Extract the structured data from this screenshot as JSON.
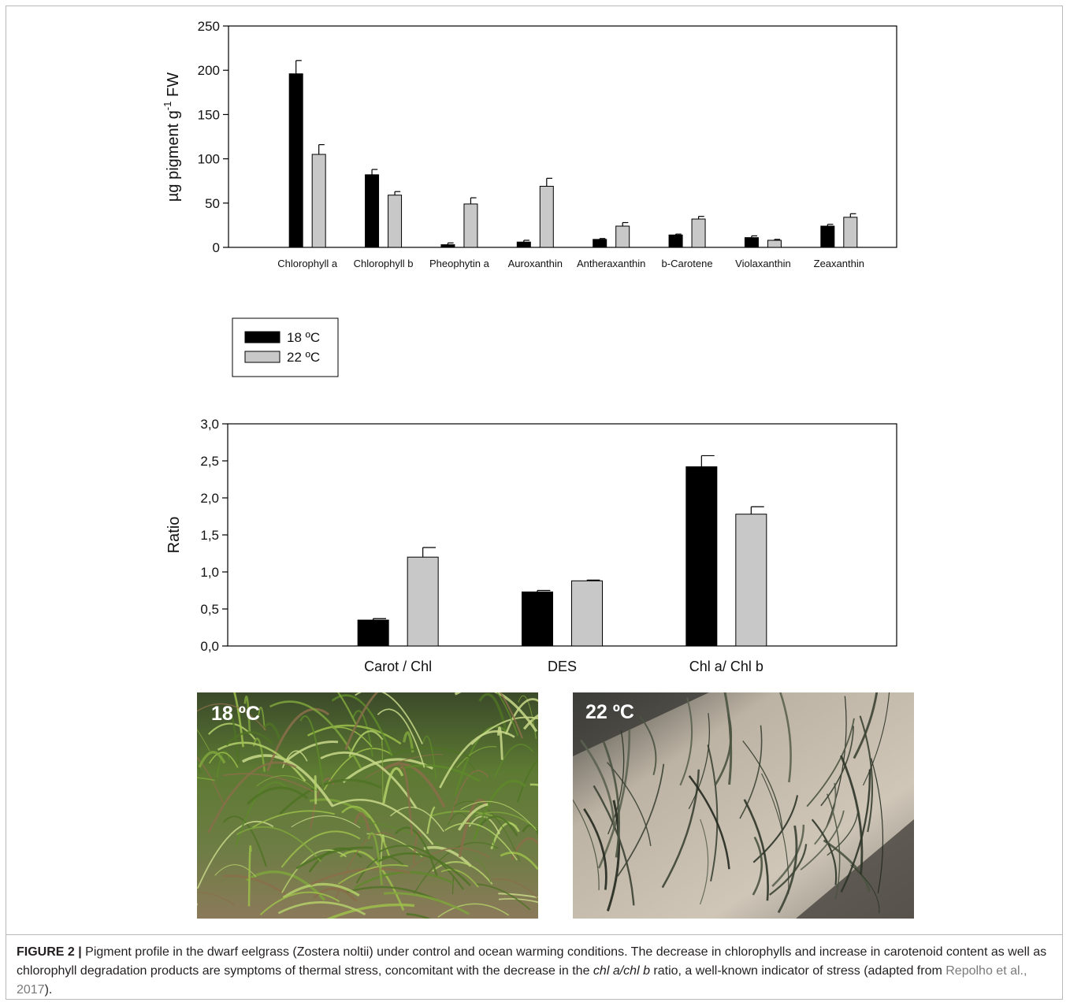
{
  "chart_data": [
    {
      "type": "bar",
      "title": "",
      "xlabel": "",
      "ylabel": "µg pigment g",
      "ylabel_sup": "-1",
      "ylabel_suffix": " FW",
      "ylim": [
        0,
        250
      ],
      "yticks": [
        "0",
        "50",
        "100",
        "150",
        "200",
        "250"
      ],
      "categories": [
        "Chlorophyll a",
        "Chlorophyll b",
        "Pheophytin a",
        "Auroxanthin",
        "Antheraxanthin",
        "b-Carotene",
        "Violaxanthin",
        "Zeaxanthin"
      ],
      "series": [
        {
          "name": "18 ºC",
          "color": "#000000",
          "values": [
            196,
            82,
            3,
            6,
            9,
            14,
            11,
            24
          ],
          "errors": [
            15,
            6,
            2,
            2,
            1,
            1,
            2,
            2
          ]
        },
        {
          "name": "22 ºC",
          "color": "#c8c8c8",
          "values": [
            105,
            59,
            49,
            69,
            24,
            32,
            8,
            34
          ],
          "errors": [
            11,
            4,
            7,
            9,
            4,
            3,
            1,
            4
          ]
        }
      ],
      "grid": false,
      "legend": "below chart, left"
    },
    {
      "type": "bar",
      "title": "",
      "xlabel": "",
      "ylabel": "Ratio",
      "ylim": [
        0,
        3
      ],
      "yticks": [
        "0,0",
        "0,5",
        "1,0",
        "1,5",
        "2,0",
        "2,5",
        "3,0"
      ],
      "categories": [
        "Carot / Chl",
        "DES",
        "Chl a/ Chl b"
      ],
      "series": [
        {
          "name": "18 ºC",
          "color": "#000000",
          "values": [
            0.35,
            0.73,
            2.42
          ],
          "errors": [
            0.02,
            0.02,
            0.15
          ]
        },
        {
          "name": "22 ºC",
          "color": "#c8c8c8",
          "values": [
            1.2,
            0.88,
            1.78
          ],
          "errors": [
            0.13,
            0.01,
            0.1
          ]
        }
      ],
      "grid": false
    }
  ],
  "legend": {
    "items": [
      {
        "label": "18 ºC",
        "color": "#000000"
      },
      {
        "label": "22 ºC",
        "color": "#c8c8c8"
      }
    ]
  },
  "photos": [
    {
      "label": "18 ºC",
      "scene": "dense green eelgrass"
    },
    {
      "label": "22 ºC",
      "scene": "sparse dark eelgrass on pale sediment"
    }
  ],
  "caption": {
    "figure": "FIGURE 2 |",
    "text1": " Pigment profile in the dwarf eelgrass (Zostera noltii) under control and ocean warming conditions. The decrease in chlorophylls and increase in carotenoid content as well as chlorophyll degradation products are symptoms of thermal stress, concomitant with the decrease in the ",
    "italic": "chl a/chl b",
    "text2": " ratio, a well-known indicator of stress (adapted from ",
    "ref": "Repolho et al., 2017",
    "text3": ")."
  }
}
